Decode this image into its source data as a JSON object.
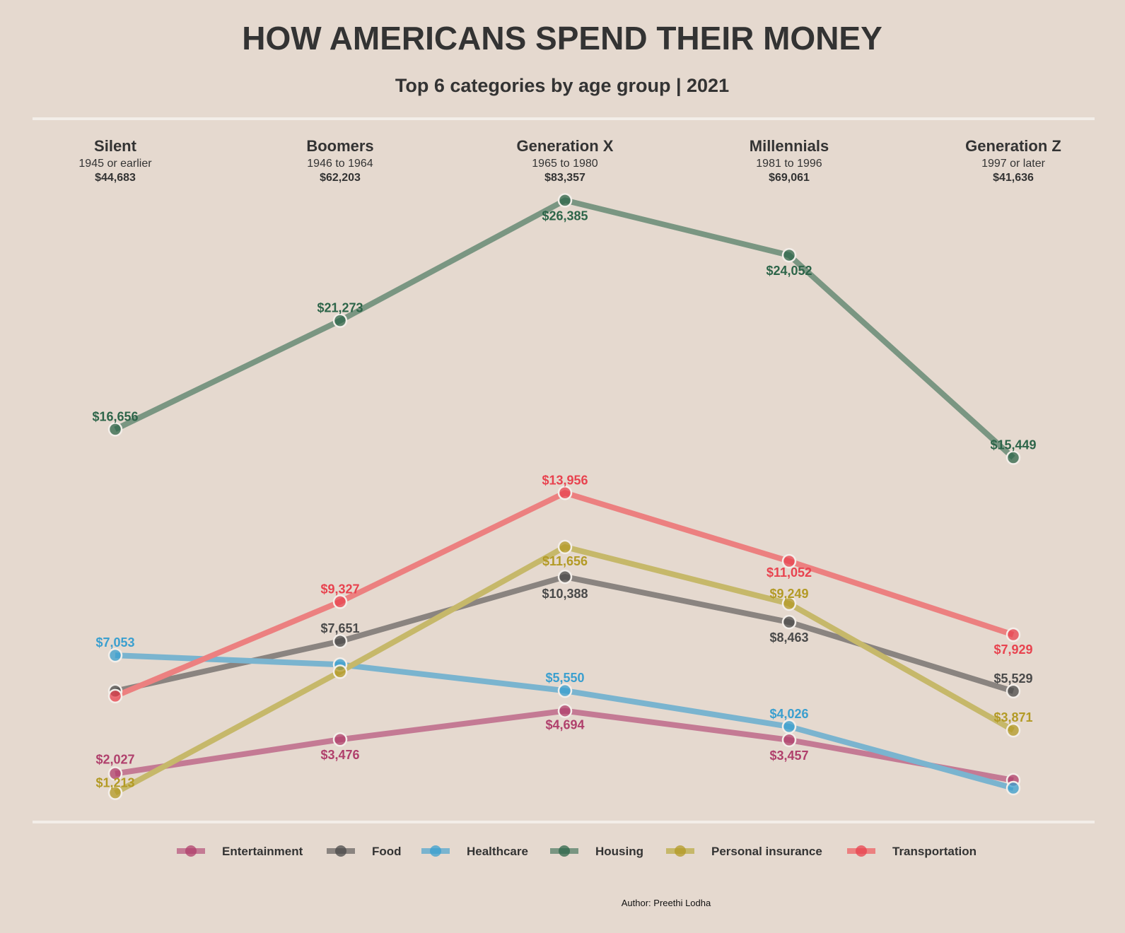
{
  "chart_data": {
    "type": "line",
    "title": "HOW AMERICANS SPEND THEIR MONEY",
    "subtitle": "Top 6 categories by age group | 2021",
    "categories": [
      {
        "name": "Silent",
        "years": "1945 or earlier",
        "total": "$44,683"
      },
      {
        "name": "Boomers",
        "years": "1946 to 1964",
        "total": "$62,203"
      },
      {
        "name": "Generation X",
        "years": "1965 to 1980",
        "total": "$83,357"
      },
      {
        "name": "Millennials",
        "years": "1981 to 1996",
        "total": "$69,061"
      },
      {
        "name": "Generation Z",
        "years": "1997 or later",
        "total": "$41,636"
      }
    ],
    "ylim": [
      0,
      28000
    ],
    "grid": false,
    "legend": "bottom",
    "series": [
      {
        "name": "Entertainment",
        "color": "#b0406c",
        "line_color": "#c47a94",
        "values": [
          2027,
          3476,
          4694,
          3457,
          1745
        ],
        "labels": [
          "$2,027",
          "$3,476",
          "$4,694",
          "$3,457",
          ""
        ]
      },
      {
        "name": "Food",
        "color": "#4a4a4a",
        "line_color": "#8a8480",
        "values": [
          5533,
          7651,
          10388,
          8463,
          5529
        ],
        "labels": [
          "",
          "$7,651",
          "$10,388",
          "$8,463",
          "$5,529"
        ]
      },
      {
        "name": "Healthcare",
        "color": "#3a9fcf",
        "line_color": "#7ab4cf",
        "values": [
          7053,
          6660,
          5550,
          4026,
          1410
        ],
        "labels": [
          "$7,053",
          "",
          "$5,550",
          "$4,026",
          ""
        ]
      },
      {
        "name": "Housing",
        "color": "#2d6549",
        "line_color": "#7a9682",
        "values": [
          16656,
          21273,
          26385,
          24052,
          15449
        ],
        "labels": [
          "$16,656",
          "$21,273",
          "$26,385",
          "$24,052",
          "$15,449"
        ]
      },
      {
        "name": "Personal insurance",
        "color": "#b39a25",
        "line_color": "#c6b86a",
        "values": [
          1213,
          6355,
          11656,
          9249,
          3871
        ],
        "labels": [
          "$1,213",
          "",
          "$11,656",
          "$9,249",
          "$3,871"
        ]
      },
      {
        "name": "Transportation",
        "color": "#e8434f",
        "line_color": "#ec8080",
        "values": [
          5320,
          9327,
          13956,
          11052,
          7929
        ],
        "labels": [
          "",
          "$9,327",
          "$13,956",
          "$11,052",
          "$7,929"
        ]
      }
    ]
  },
  "author": "Author: Preethi Lodha"
}
